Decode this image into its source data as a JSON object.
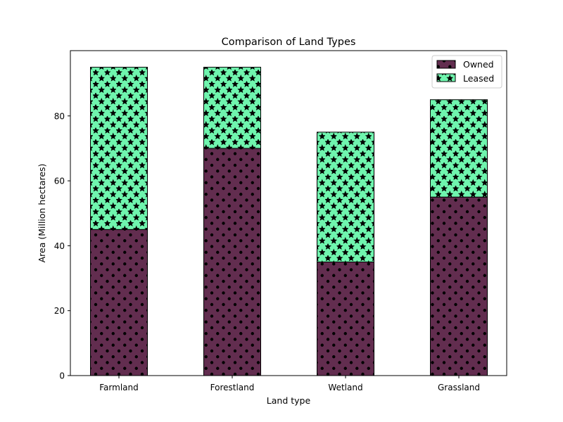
{
  "chart_data": {
    "type": "bar",
    "stacked": true,
    "title": "Comparison of Land Types",
    "xlabel": "Land type",
    "ylabel": "Area (Million hectares)",
    "categories": [
      "Farmland",
      "Forestland",
      "Wetland",
      "Grassland"
    ],
    "series": [
      {
        "name": "Owned",
        "values": [
          45,
          70,
          35,
          55
        ],
        "color": "#622D4F",
        "pattern": "dots"
      },
      {
        "name": "Leased",
        "values": [
          50,
          25,
          40,
          30
        ],
        "color": "#6FF5AE",
        "pattern": "stars"
      }
    ],
    "ylim": [
      0,
      100
    ],
    "yticks": [
      0,
      20,
      40,
      60,
      80
    ],
    "grid": false,
    "legend_position": "top-right"
  }
}
